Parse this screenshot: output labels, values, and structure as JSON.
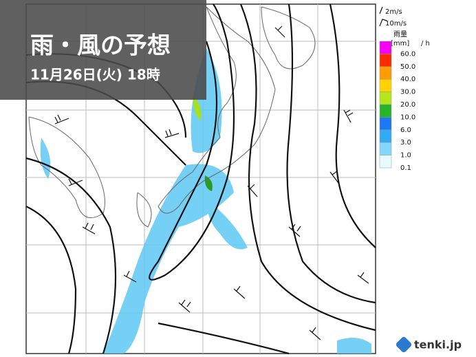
{
  "title": "雨・風の予想",
  "datetime": "11月26日(火) 18時",
  "wind_legend": [
    "2m/s",
    "10m/s"
  ],
  "rain_legend": {
    "title": "雨量",
    "unit": "[mm]",
    "per": "/ h",
    "levels": [
      {
        "label": "60.0",
        "color": "#f500f5"
      },
      {
        "label": "50.0",
        "color": "#ff2a00"
      },
      {
        "label": "40.0",
        "color": "#ff9a00"
      },
      {
        "label": "30.0",
        "color": "#ffd200"
      },
      {
        "label": "20.0",
        "color": "#b4e61e"
      },
      {
        "label": "10.0",
        "color": "#28b428"
      },
      {
        "label": "6.0",
        "color": "#1e78f0"
      },
      {
        "label": "3.0",
        "color": "#32aaf5"
      },
      {
        "label": "1.0",
        "color": "#82d7fa"
      },
      {
        "label": "0.1",
        "color": "#e6faff"
      }
    ]
  },
  "logo": "tenki.jp"
}
